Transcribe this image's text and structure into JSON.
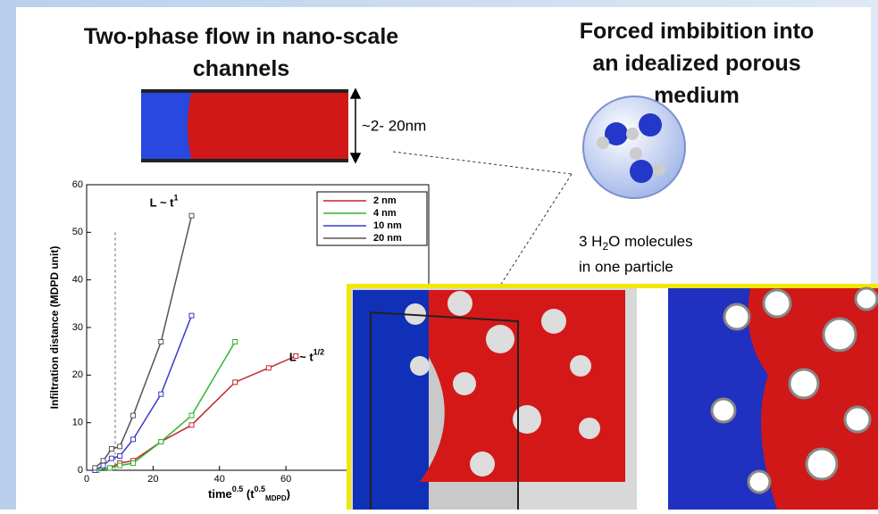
{
  "left_title": "Two-phase flow in nano-scale channels",
  "right_title": "Forced imbibition into an idealized porous medium",
  "channel_label": "~2- 20nm",
  "molecule_caption": {
    "line1": [
      "3 H",
      "2",
      "O molecules"
    ],
    "line2": "in one particle"
  },
  "chart_data": {
    "type": "line",
    "ylabel": "Infiltration distance (MDPD unit)",
    "xlabel": {
      "main": "time",
      "main_sup": "0.5",
      "unit_open": "  (t",
      "unit_sup": "0.5",
      "unit_sub": "MDPD",
      "unit_close": ")"
    },
    "annotations": [
      {
        "text": "L ~ t",
        "sup": "1",
        "x": 19,
        "y": 56
      },
      {
        "text": "L ~ t",
        "sup": "1/2",
        "x": 61,
        "y": 23.5
      }
    ],
    "vline": 8.6,
    "xlim": [
      0,
      103
    ],
    "ylim": [
      0,
      60
    ],
    "xticks": [
      0,
      20,
      40,
      60
    ],
    "yticks": [
      0,
      10,
      20,
      30,
      40,
      50,
      60
    ],
    "series": [
      {
        "name": "2 nm",
        "color": "#c0282a",
        "x": [
          3,
          7,
          10,
          14,
          22.4,
          31.6,
          44.7,
          54.8,
          63
        ],
        "values": [
          0,
          0.5,
          1.5,
          2,
          6,
          9.5,
          18.5,
          21.5,
          24
        ]
      },
      {
        "name": "4 nm",
        "color": "#2fb52f",
        "x": [
          3,
          7,
          10,
          14,
          22.4,
          31.6,
          44.7
        ],
        "values": [
          0,
          0.5,
          1,
          1.5,
          6,
          11.5,
          27
        ]
      },
      {
        "name": "10 nm",
        "color": "#3a3acc",
        "x": [
          2.5,
          5,
          7.5,
          10,
          14,
          22.4,
          31.6
        ],
        "values": [
          0,
          1,
          2.5,
          3,
          6.5,
          16,
          32.5
        ]
      },
      {
        "name": "20 nm",
        "color": "#555555",
        "x": [
          2.5,
          5,
          7.5,
          10,
          14,
          22.4,
          31.6
        ],
        "values": [
          0.5,
          2,
          4.5,
          5,
          11.5,
          27,
          53.5
        ]
      }
    ]
  }
}
